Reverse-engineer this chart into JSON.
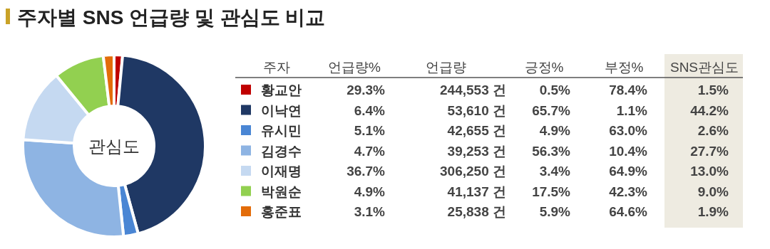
{
  "chart_data": [
    {
      "type": "donut",
      "title": "주자별 SNS 언급량 및 관심도 비교",
      "categories": [
        "황교안",
        "이낙연",
        "유시민",
        "김경수",
        "이재명",
        "박원순",
        "홍준표"
      ],
      "colors": [
        "#c00000",
        "#1f3864",
        "#4a86d4",
        "#8eb4e3",
        "#c5d9f1",
        "#92d050",
        "#e36c09"
      ],
      "annotations": [
        "관심도"
      ],
      "legend": "right",
      "legend_title": "주자",
      "series": [
        {
          "name": "SNS관심도",
          "values": [
            1.5,
            44.2,
            2.6,
            27.7,
            13.0,
            9.0,
            1.9
          ],
          "value_labels": [
            "1.5%",
            "44.2%",
            "2.6%",
            "27.7%",
            "13.0%",
            "9.0%",
            "1.9%"
          ]
        }
      ]
    },
    {
      "type": "other",
      "annotations": [
        "언급량%",
        "언급량",
        "긍정%",
        "부정%",
        "29.3%",
        "244,553 건",
        "0.5%",
        "78.4%",
        "6.4%",
        "53,610 건",
        "65.7%",
        "1.1%",
        "5.1%",
        "42,655 건",
        "4.9%",
        "63.0%",
        "4.7%",
        "39,253 건",
        "56.3%",
        "10.4%",
        "36.7%",
        "306,250 건",
        "3.4%",
        "64.9%",
        "4.9%",
        "41,137 건",
        "17.5%",
        "42.3%",
        "3.1%",
        "25,838 건",
        "5.9%",
        "64.6%"
      ]
    }
  ]
}
